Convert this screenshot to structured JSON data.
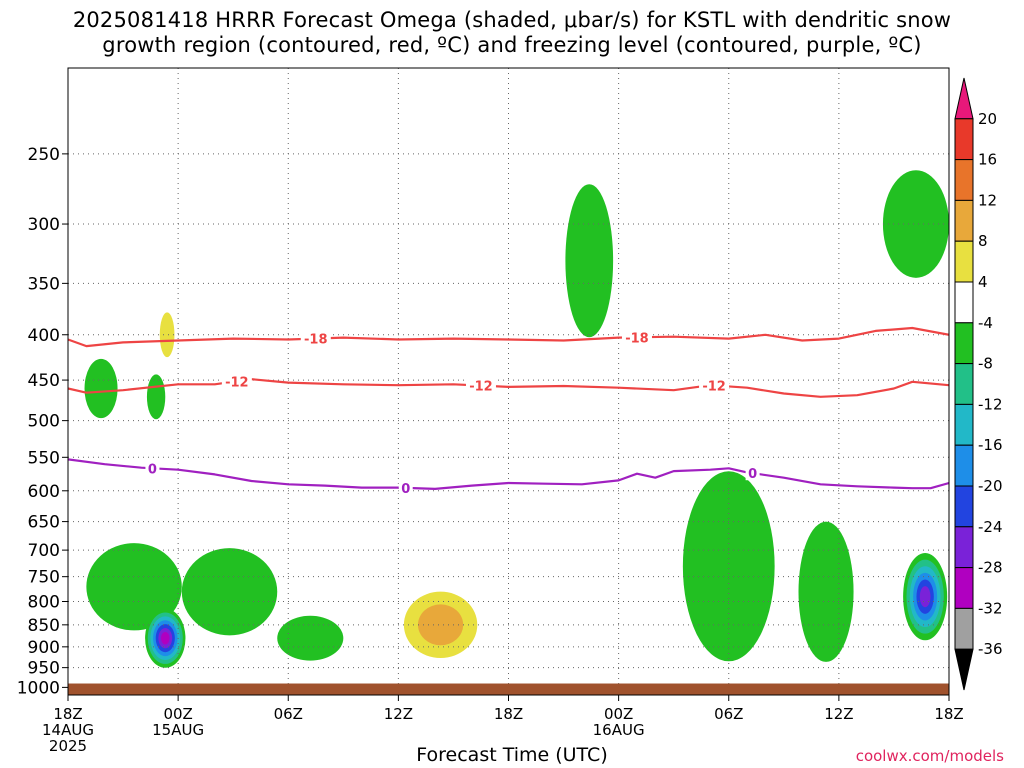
{
  "title": {
    "line1": "2025081418 HRRR Forecast Omega (shaded, μbar/s) for KSTL with dendritic snow",
    "line2": "growth region (contoured, red, ºC) and freezing level (contoured, purple, ºC)"
  },
  "footer": {
    "xtitle": "Forecast Time (UTC)",
    "credit": "coolwx.com/models"
  },
  "chart_data": {
    "type": "heatmap",
    "title": "2025081418 HRRR Forecast Omega (shaded, μbar/s) for KSTL with dendritic snow growth region (contoured, red, ºC) and freezing level (contoured, purple, ºC)",
    "xlabel": "Forecast Time (UTC)",
    "ylabel": "",
    "y_ticks": [
      "250",
      "300",
      "350",
      "400",
      "450",
      "500",
      "550",
      "600",
      "650",
      "700",
      "750",
      "800",
      "850",
      "900",
      "950",
      "1000"
    ],
    "y_tick_values": [
      250,
      300,
      350,
      400,
      450,
      500,
      550,
      600,
      650,
      700,
      750,
      800,
      850,
      900,
      950,
      1000
    ],
    "y_range": [
      200,
      1020
    ],
    "y_scale": "log",
    "x_ticks": [
      {
        "h": 0,
        "lines": [
          "18Z",
          "14AUG",
          "2025"
        ]
      },
      {
        "h": 6,
        "lines": [
          "00Z",
          "15AUG"
        ]
      },
      {
        "h": 12,
        "lines": [
          "06Z"
        ]
      },
      {
        "h": 18,
        "lines": [
          "12Z"
        ]
      },
      {
        "h": 24,
        "lines": [
          "18Z"
        ]
      },
      {
        "h": 30,
        "lines": [
          "00Z",
          "16AUG"
        ]
      },
      {
        "h": 36,
        "lines": [
          "06Z"
        ]
      },
      {
        "h": 42,
        "lines": [
          "12Z"
        ]
      },
      {
        "h": 48,
        "lines": [
          "18Z"
        ]
      }
    ],
    "x_range": [
      0,
      48
    ],
    "grid": true,
    "colorbar": {
      "labels": [
        "20",
        "16",
        "12",
        "8",
        "4",
        "-4",
        "-8",
        "-12",
        "-16",
        "-20",
        "-24",
        "-28",
        "-32",
        "-36"
      ],
      "colors": [
        "#e8187a",
        "#e8392a",
        "#e8742a",
        "#e8a83a",
        "#e8e040",
        "#ffffff",
        "#22c022",
        "#22c088",
        "#22b8c8",
        "#1e8ee8",
        "#2244e0",
        "#7a22d8",
        "#b000c0",
        "#a0a0a0",
        "#000000"
      ]
    },
    "contours": [
      {
        "name": "dendritic -18",
        "color": "#ee4444",
        "label": "-18",
        "points": [
          [
            0,
            405
          ],
          [
            1,
            412
          ],
          [
            3,
            408
          ],
          [
            6,
            406
          ],
          [
            9,
            404
          ],
          [
            12,
            405
          ],
          [
            15,
            403
          ],
          [
            18,
            405
          ],
          [
            21,
            404
          ],
          [
            24,
            405
          ],
          [
            27,
            406
          ],
          [
            30,
            403
          ],
          [
            33,
            402
          ],
          [
            36,
            404
          ],
          [
            38,
            400
          ],
          [
            40,
            406
          ],
          [
            42,
            404
          ],
          [
            44,
            396
          ],
          [
            46,
            393
          ],
          [
            48,
            400
          ]
        ],
        "label_h": [
          13.5,
          31
        ]
      },
      {
        "name": "dendritic -12",
        "color": "#ee4444",
        "label": "-12",
        "points": [
          [
            0,
            460
          ],
          [
            1,
            465
          ],
          [
            3,
            462
          ],
          [
            6,
            455
          ],
          [
            8,
            455
          ],
          [
            10,
            449
          ],
          [
            12,
            453
          ],
          [
            15,
            455
          ],
          [
            18,
            456
          ],
          [
            21,
            455
          ],
          [
            24,
            458
          ],
          [
            27,
            457
          ],
          [
            30,
            459
          ],
          [
            33,
            462
          ],
          [
            35,
            456
          ],
          [
            37,
            459
          ],
          [
            39,
            466
          ],
          [
            41,
            470
          ],
          [
            43,
            468
          ],
          [
            45,
            460
          ],
          [
            46,
            452
          ],
          [
            48,
            456
          ]
        ],
        "label_h": [
          9.2,
          22.5,
          35.2
        ]
      },
      {
        "name": "freezing level 0",
        "color": "#a020c0",
        "label": "0",
        "points": [
          [
            0,
            553
          ],
          [
            2,
            560
          ],
          [
            4,
            565
          ],
          [
            6,
            568
          ],
          [
            8,
            575
          ],
          [
            10,
            585
          ],
          [
            12,
            590
          ],
          [
            14,
            592
          ],
          [
            16,
            595
          ],
          [
            18,
            595
          ],
          [
            20,
            597
          ],
          [
            22,
            592
          ],
          [
            24,
            588
          ],
          [
            26,
            589
          ],
          [
            28,
            590
          ],
          [
            30,
            584
          ],
          [
            31,
            574
          ],
          [
            32,
            580
          ],
          [
            33,
            570
          ],
          [
            35,
            568
          ],
          [
            36,
            566
          ],
          [
            37,
            572
          ],
          [
            39,
            580
          ],
          [
            41,
            590
          ],
          [
            43,
            593
          ],
          [
            45,
            595
          ],
          [
            46,
            596
          ],
          [
            47,
            596
          ],
          [
            48,
            588
          ]
        ],
        "label_h": [
          4.6,
          18.4,
          37.3
        ]
      }
    ],
    "shading_regions": [
      {
        "level": -4,
        "h": 1.8,
        "p": 460,
        "dh": 0.9,
        "dp": 0.08
      },
      {
        "level": -4,
        "h": 4.8,
        "p": 470,
        "dh": 0.5,
        "dp": 0.06
      },
      {
        "level": 4,
        "h": 5.4,
        "p": 400,
        "dh": 0.4,
        "dp": 0.06
      },
      {
        "level": -4,
        "h": 3.6,
        "p": 770,
        "dh": 2.6,
        "dp": 0.12
      },
      {
        "level": -28,
        "h": 5.3,
        "p": 880,
        "dh": 1.1,
        "dp": 0.08
      },
      {
        "level": -4,
        "h": 8.8,
        "p": 780,
        "dh": 2.6,
        "dp": 0.12
      },
      {
        "level": -4,
        "h": 13.2,
        "p": 880,
        "dh": 1.8,
        "dp": 0.06
      },
      {
        "level": 8,
        "h": 20.3,
        "p": 850,
        "dh": 2.0,
        "dp": 0.09
      },
      {
        "level": -4,
        "h": 28.4,
        "p": 330,
        "dh": 1.3,
        "dp": 0.22
      },
      {
        "level": -4,
        "h": 36.0,
        "p": 730,
        "dh": 2.5,
        "dp": 0.28
      },
      {
        "level": -4,
        "h": 41.3,
        "p": 780,
        "dh": 1.5,
        "dp": 0.2
      },
      {
        "level": -24,
        "h": 46.7,
        "p": 790,
        "dh": 1.2,
        "dp": 0.12
      },
      {
        "level": -4,
        "h": 46.2,
        "p": 300,
        "dh": 1.8,
        "dp": 0.15
      }
    ],
    "surface_band": {
      "p_top": 990,
      "color": "#a0522d"
    }
  }
}
